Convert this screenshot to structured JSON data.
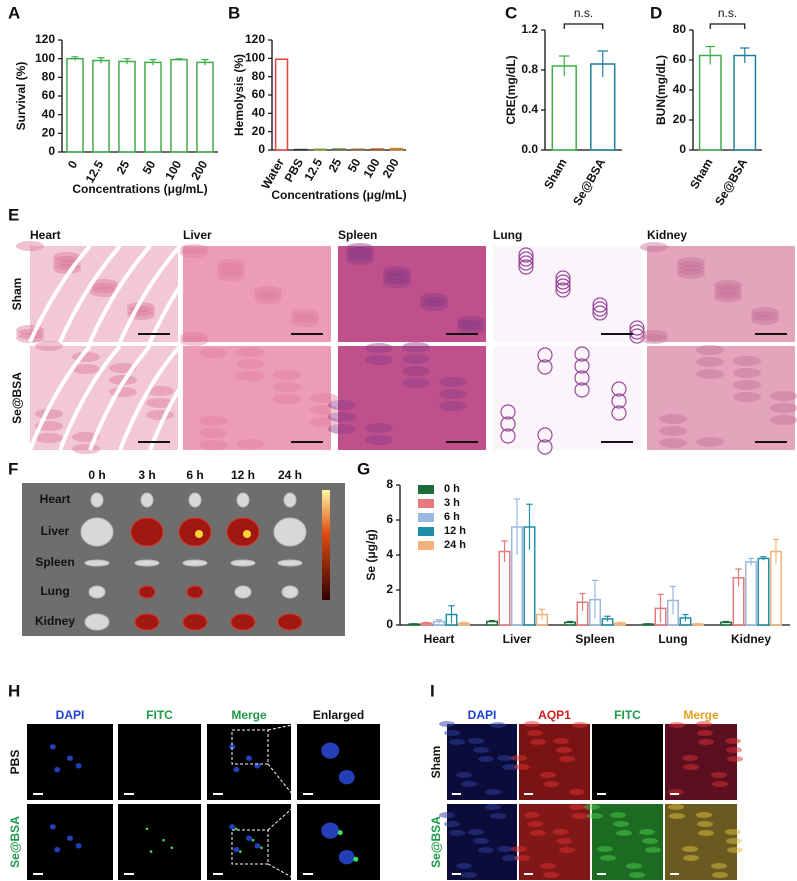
{
  "chart_data": [
    {
      "type": "bar",
      "panel_label": "A",
      "ylabel": "Survival (%)",
      "xlabel": "Concentrations (μg/mL)",
      "categories": [
        "0",
        "12.5",
        "25",
        "50",
        "100",
        "200"
      ],
      "values": [
        100,
        98,
        97,
        96,
        99,
        96
      ],
      "errors": [
        2,
        3,
        3,
        3,
        1,
        3
      ],
      "color": "#3fae49",
      "ylim": [
        0,
        120
      ],
      "yticks": [
        0,
        20,
        40,
        60,
        80,
        100,
        120
      ]
    },
    {
      "type": "bar",
      "panel_label": "B",
      "ylabel": "Hemolysis (%)",
      "xlabel": "Concentrations (μg/mL)",
      "categories": [
        "Water",
        "PBS",
        "12.5",
        "25",
        "50",
        "100",
        "200"
      ],
      "values": [
        99,
        0.5,
        0.8,
        1,
        0.8,
        1,
        1.5
      ],
      "colors": [
        "#e8403c",
        "#333333",
        "#7a9a3a",
        "#5a7a3a",
        "#8a6a3a",
        "#a05a2a",
        "#c08030"
      ],
      "ylim": [
        0,
        120
      ],
      "yticks": [
        0,
        20,
        40,
        60,
        80,
        100,
        120
      ]
    },
    {
      "type": "bar",
      "panel_label": "C",
      "ylabel": "CRE(mg/dL)",
      "annotation": "n.s.",
      "categories": [
        "Sham",
        "Se@BSA"
      ],
      "values": [
        0.84,
        0.86
      ],
      "errors": [
        0.1,
        0.13
      ],
      "colors": [
        "#3fae49",
        "#1f7fa0"
      ],
      "ylim": [
        0,
        1.2
      ],
      "yticks": [
        {
          "value": 0,
          "label": "0.0"
        },
        0.4,
        0.8,
        1.2
      ]
    },
    {
      "type": "bar",
      "panel_label": "D",
      "ylabel": "BUN(mg/dL)",
      "annotation": "n.s.",
      "categories": [
        "Sham",
        "Se@BSA"
      ],
      "values": [
        63,
        63
      ],
      "errors": [
        6,
        5
      ],
      "colors": [
        "#3fae49",
        "#1f7fa0"
      ],
      "ylim": [
        0,
        80
      ],
      "yticks": [
        0,
        20,
        40,
        60,
        80
      ]
    },
    {
      "type": "grouped-bar",
      "panel_label": "G",
      "ylabel": "Se (μg/g)",
      "categories": [
        "Heart",
        "Liver",
        "Spleen",
        "Lung",
        "Kidney"
      ],
      "series": [
        {
          "name": "0 h",
          "color": "#1e6b3a",
          "values": [
            0.05,
            0.2,
            0.15,
            0.05,
            0.15
          ],
          "errors": [
            0.02,
            0.05,
            0.05,
            0.02,
            0.05
          ]
        },
        {
          "name": "3 h",
          "color": "#e8787a",
          "values": [
            0.1,
            4.2,
            1.3,
            0.95,
            2.7
          ],
          "errors": [
            0.05,
            0.6,
            0.5,
            0.8,
            0.5
          ]
        },
        {
          "name": "6 h",
          "color": "#9ab8e0",
          "values": [
            0.2,
            5.6,
            1.45,
            1.4,
            3.6
          ],
          "errors": [
            0.1,
            1.6,
            1.1,
            0.8,
            0.2
          ]
        },
        {
          "name": "12 h",
          "color": "#1f8fa8",
          "values": [
            0.6,
            5.6,
            0.35,
            0.4,
            3.8
          ],
          "errors": [
            0.5,
            1.3,
            0.15,
            0.2,
            0.1
          ]
        },
        {
          "name": "24 h",
          "color": "#f2b27a",
          "values": [
            0.1,
            0.6,
            0.1,
            0.05,
            4.2
          ],
          "errors": [
            0.05,
            0.3,
            0.05,
            0.02,
            0.7
          ]
        }
      ],
      "ylim": [
        0,
        8
      ],
      "yticks": [
        0,
        2,
        4,
        6,
        8
      ]
    }
  ],
  "histology": {
    "panel_label": "E",
    "columns": [
      "Heart",
      "Liver",
      "Spleen",
      "Lung",
      "Kidney"
    ],
    "rows": [
      "Sham",
      "Se@BSA"
    ]
  },
  "biodistribution_imaging": {
    "panel_label": "F",
    "columns": [
      "0 h",
      "3 h",
      "6 h",
      "12 h",
      "24 h"
    ],
    "rows": [
      "Heart",
      "Liver",
      "Spleen",
      "Lung",
      "Kidney"
    ]
  },
  "cell_imaging": {
    "panel_label": "H",
    "columns": [
      "DAPI",
      "FITC",
      "Merge",
      "Enlarged"
    ],
    "rows": [
      "PBS",
      "Se@BSA"
    ]
  },
  "kidney_imaging": {
    "panel_label": "I",
    "columns": [
      "DAPI",
      "AQP1",
      "FITC",
      "Merge"
    ],
    "rows": [
      "Sham",
      "Se@BSA"
    ]
  }
}
